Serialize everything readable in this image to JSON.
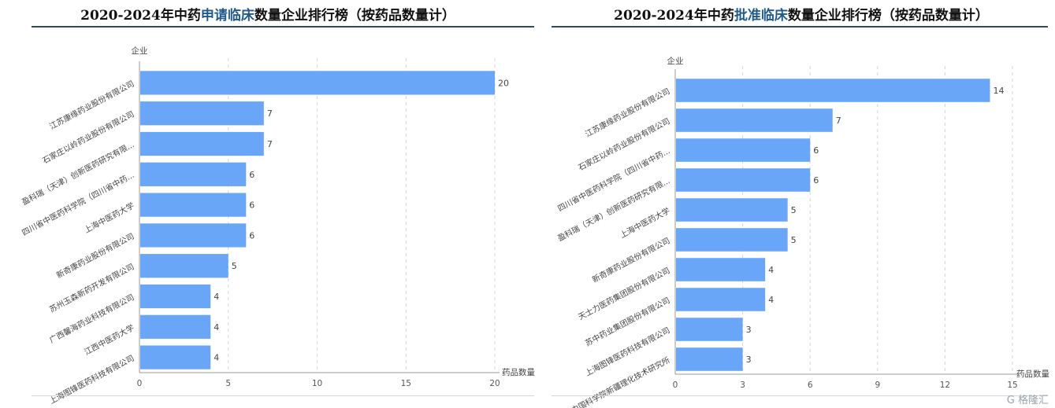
{
  "left_title": {
    "prefix": "2020-2024年中药",
    "highlight": "申请临床",
    "suffix": "数量企业排行榜（按药品数量计）"
  },
  "right_title": {
    "prefix": "2020-2024年中药",
    "highlight": "批准临床",
    "suffix": "数量企业排行榜（按药品数量计）"
  },
  "colors": {
    "bar": "#6aa6f8",
    "title_highlight": "#1f5a8a",
    "rule": "#2f4a60"
  },
  "watermark": "G 格隆汇",
  "chart_data": [
    {
      "type": "bar",
      "orientation": "horizontal",
      "title": "2020-2024年中药申请临床数量企业排行榜（按药品数量计）",
      "ylabel": "企业",
      "xlabel": "药品数量",
      "categories": [
        "江苏康缘药业股份有限公司",
        "石家庄以岭药业股份有限公司",
        "盈科瑞（天津）创新医药研究有限...",
        "四川省中医药科学院（四川省中药...",
        "上海中医药大学",
        "新奇康药业股份有限公司",
        "苏州玉森新药开发有限公司",
        "广西馨海药业科技有限公司",
        "江西中医药大学",
        "上海图锋医药科技有限公司"
      ],
      "values": [
        20,
        7,
        7,
        6,
        6,
        6,
        5,
        4,
        4,
        4
      ],
      "xlim": [
        0,
        20
      ],
      "xticks": [
        0,
        5,
        10,
        15,
        20
      ],
      "grid": "vertical-dashed"
    },
    {
      "type": "bar",
      "orientation": "horizontal",
      "title": "2020-2024年中药批准临床数量企业排行榜（按药品数量计）",
      "ylabel": "企业",
      "xlabel": "药品数量",
      "categories": [
        "江苏康缘药业股份有限公司",
        "石家庄以岭药业股份有限公司",
        "四川省中医药科学院（四川省中药...",
        "盈科瑞（天津）创新医药研究有限...",
        "上海中医药大学",
        "新奇康药业股份有限公司",
        "天士力医药集团股份有限公司",
        "苏中药业集团股份有限公司",
        "上海图锋医药科技有限公司",
        "中国科学院新疆理化技术研究所"
      ],
      "values": [
        14,
        7,
        6,
        6,
        5,
        5,
        4,
        4,
        3,
        3
      ],
      "xlim": [
        0,
        15
      ],
      "xticks": [
        0,
        3,
        6,
        9,
        12,
        15
      ],
      "grid": "vertical-dashed"
    }
  ]
}
